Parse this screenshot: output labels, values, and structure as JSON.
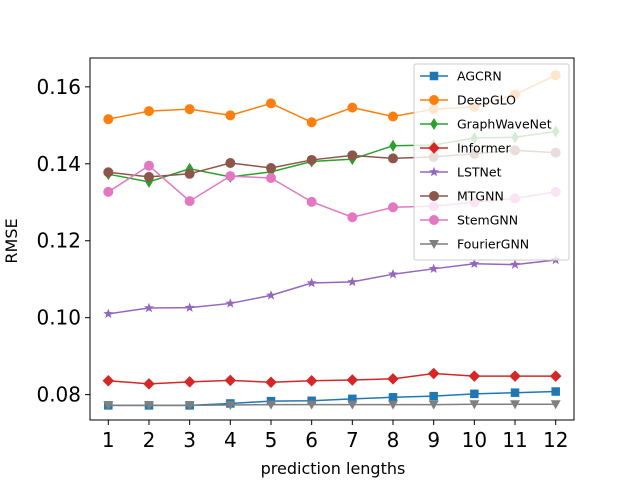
{
  "chart_data": {
    "type": "line",
    "title": "",
    "xlabel": "prediction lengths",
    "ylabel": "RMSE",
    "x": [
      1,
      2,
      3,
      4,
      5,
      6,
      7,
      8,
      9,
      10,
      11,
      12
    ],
    "x_tick_labels": [
      "1",
      "2",
      "3",
      "4",
      "5",
      "6",
      "7",
      "8",
      "9",
      "10",
      "11",
      "12"
    ],
    "y_ticks": [
      0.08,
      0.1,
      0.12,
      0.14,
      0.16
    ],
    "y_tick_labels": [
      "0.08",
      "0.10",
      "0.12",
      "0.14",
      "0.16"
    ],
    "xlim": [
      0.55,
      12.45
    ],
    "ylim": [
      0.0734,
      0.1675
    ],
    "grid": false,
    "legend_position": "top-right",
    "series": [
      {
        "name": "AGCRN",
        "color": "#1f77b4",
        "marker": "square",
        "values": [
          0.0772,
          0.0772,
          0.0772,
          0.0777,
          0.0783,
          0.0784,
          0.0789,
          0.0793,
          0.0796,
          0.0802,
          0.0805,
          0.0808
        ]
      },
      {
        "name": "DeepGLO",
        "color": "#ff7f0e",
        "marker": "circle",
        "values": [
          0.1516,
          0.1537,
          0.1542,
          0.1526,
          0.1557,
          0.1508,
          0.1546,
          0.1523,
          0.1542,
          0.1548,
          0.158,
          0.163
        ]
      },
      {
        "name": "GraphWaveNet",
        "color": "#2ca02c",
        "marker": "thin_diamond",
        "values": [
          0.1373,
          0.1353,
          0.1387,
          0.1366,
          0.1379,
          0.1406,
          0.1412,
          0.1447,
          0.1449,
          0.1467,
          0.1469,
          0.1484
        ]
      },
      {
        "name": "Informer",
        "color": "#d62728",
        "marker": "diamond",
        "values": [
          0.0836,
          0.0828,
          0.0833,
          0.0837,
          0.0832,
          0.0836,
          0.0838,
          0.0841,
          0.0855,
          0.0848,
          0.0848,
          0.0848
        ]
      },
      {
        "name": "LSTNet",
        "color": "#9467bd",
        "marker": "star",
        "values": [
          0.101,
          0.1025,
          0.1026,
          0.1037,
          0.1058,
          0.109,
          0.1093,
          0.1113,
          0.1127,
          0.114,
          0.1138,
          0.115
        ]
      },
      {
        "name": "MTGNN",
        "color": "#8c564b",
        "marker": "circle",
        "values": [
          0.1378,
          0.1366,
          0.1374,
          0.1402,
          0.1389,
          0.141,
          0.1422,
          0.1414,
          0.1418,
          0.1426,
          0.1435,
          0.1429
        ]
      },
      {
        "name": "StemGNN",
        "color": "#e377c2",
        "marker": "circle",
        "values": [
          0.1327,
          0.1395,
          0.1303,
          0.1368,
          0.1363,
          0.1301,
          0.1261,
          0.1287,
          0.129,
          0.13,
          0.131,
          0.1327
        ]
      },
      {
        "name": "FourierGNN",
        "color": "#7f7f7f",
        "marker": "triangle_down",
        "values": [
          0.0772,
          0.0772,
          0.0772,
          0.0773,
          0.0774,
          0.0774,
          0.0774,
          0.0774,
          0.0774,
          0.0775,
          0.0775,
          0.0775
        ]
      }
    ]
  }
}
